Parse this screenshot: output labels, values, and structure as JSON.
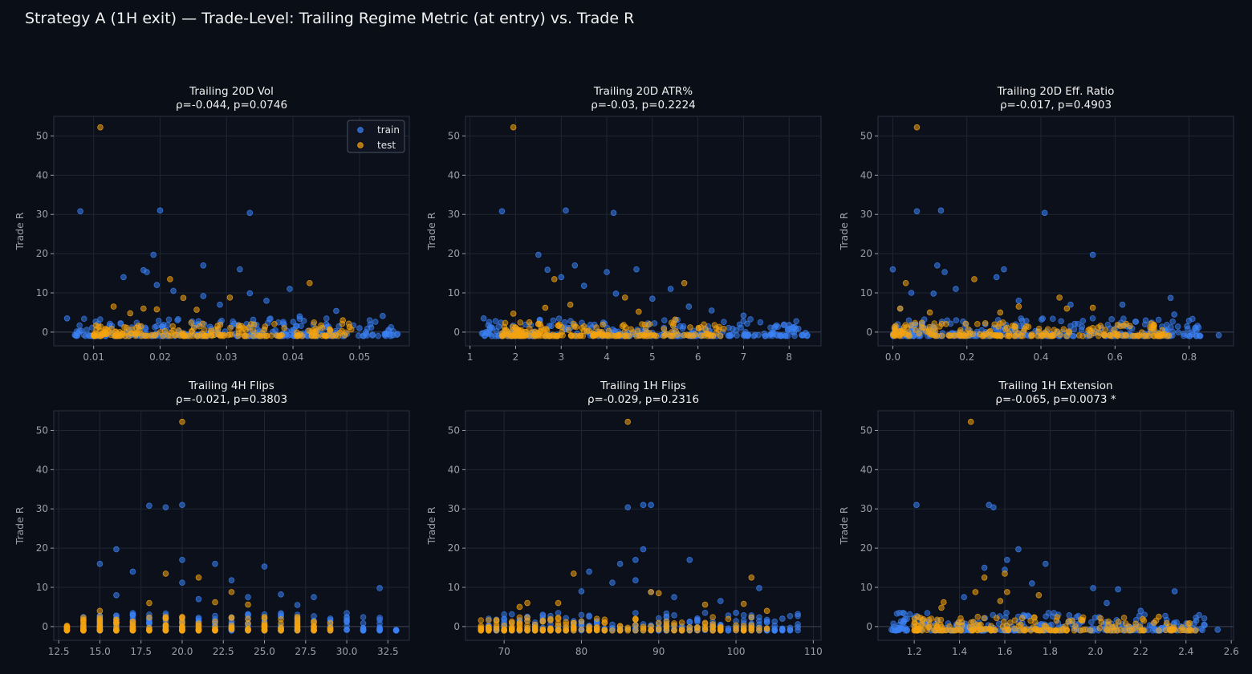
{
  "title": "Strategy A (1H exit) — Trade-Level: Trailing Regime Metric (at entry) vs. Trade R",
  "colors": {
    "background": "#0a0e17",
    "train": "#3b82f6",
    "test": "#f5a30e"
  },
  "legend": {
    "position": "top-right",
    "entries": [
      "train",
      "test"
    ]
  },
  "chart_data": [
    {
      "type": "scatter",
      "title": "Trailing 20D Vol",
      "subtitle": "ρ=-0.044, p=0.0746",
      "xlabel": "",
      "ylabel": "Trade R",
      "xlim": [
        0.004,
        0.0575
      ],
      "ylim": [
        -3.5,
        55
      ],
      "xticks": [
        0.01,
        0.02,
        0.03,
        0.04,
        0.05
      ],
      "xticklabels": [
        "0.01",
        "0.02",
        "0.03",
        "0.04",
        "0.05"
      ],
      "yticks": [
        0,
        10,
        20,
        30,
        40,
        50
      ],
      "grid": true,
      "legend": true,
      "series": [
        {
          "name": "train",
          "points": [
            [
              0.008,
              30.8
            ],
            [
              0.02,
              31.0
            ],
            [
              0.0335,
              30.4
            ],
            [
              0.019,
              19.7
            ],
            [
              0.0265,
              17.0
            ],
            [
              0.0175,
              15.8
            ],
            [
              0.018,
              15.3
            ],
            [
              0.0145,
              14.0
            ],
            [
              0.032,
              16.0
            ],
            [
              0.0195,
              12.0
            ],
            [
              0.0395,
              11.0
            ],
            [
              0.022,
              10.5
            ],
            [
              0.0335,
              9.9
            ],
            [
              0.0465,
              5.4
            ],
            [
              0.0535,
              4.1
            ],
            [
              0.006,
              3.5
            ],
            [
              0.036,
              8.0
            ],
            [
              0.0265,
              9.2
            ],
            [
              0.029,
              7.0
            ],
            [
              0.041,
              4.0
            ],
            [
              0.045,
              2.0
            ],
            [
              0.05,
              1.0
            ],
            [
              0.054,
              -0.4
            ],
            [
              0.055,
              -0.8
            ]
          ],
          "range": [
            0.007,
            0.056
          ]
        },
        {
          "name": "test",
          "points": [
            [
              0.011,
              52.2
            ],
            [
              0.0215,
              13.5
            ],
            [
              0.0425,
              12.5
            ],
            [
              0.0305,
              8.8
            ],
            [
              0.0195,
              5.8
            ],
            [
              0.0175,
              6.0
            ],
            [
              0.013,
              6.5
            ],
            [
              0.0235,
              8.7
            ],
            [
              0.0475,
              3.0
            ],
            [
              0.0485,
              1.3
            ],
            [
              0.0255,
              5.7
            ],
            [
              0.0155,
              4.8
            ]
          ],
          "range": [
            0.01,
            0.049
          ]
        }
      ]
    },
    {
      "type": "scatter",
      "title": "Trailing 20D ATR%",
      "subtitle": "ρ=-0.03, p=0.2224",
      "xlabel": "",
      "ylabel": "Trade R",
      "xlim": [
        0.9,
        8.7
      ],
      "ylim": [
        -3.5,
        55
      ],
      "xticks": [
        1,
        2,
        3,
        4,
        5,
        6,
        7,
        8
      ],
      "xticklabels": [
        "1",
        "2",
        "3",
        "4",
        "5",
        "6",
        "7",
        "8"
      ],
      "yticks": [
        0,
        10,
        20,
        30,
        40,
        50
      ],
      "grid": true,
      "legend": false,
      "series": [
        {
          "name": "train",
          "points": [
            [
              1.7,
              30.8
            ],
            [
              3.1,
              31.0
            ],
            [
              4.15,
              30.4
            ],
            [
              2.5,
              19.7
            ],
            [
              3.3,
              17.0
            ],
            [
              2.7,
              15.9
            ],
            [
              4.65,
              16.0
            ],
            [
              3.0,
              14.0
            ],
            [
              4.0,
              15.3
            ],
            [
              3.5,
              11.8
            ],
            [
              5.4,
              11.0
            ],
            [
              4.2,
              9.8
            ],
            [
              5.0,
              8.5
            ],
            [
              6.3,
              5.5
            ],
            [
              7.0,
              4.2
            ],
            [
              1.3,
              3.5
            ],
            [
              8.0,
              1.8
            ],
            [
              8.1,
              1.0
            ],
            [
              7.6,
              -0.5
            ],
            [
              8.4,
              -0.8
            ],
            [
              5.8,
              6.5
            ]
          ],
          "range": [
            1.25,
            8.4
          ]
        },
        {
          "name": "test",
          "points": [
            [
              1.95,
              52.2
            ],
            [
              2.85,
              13.5
            ],
            [
              5.7,
              12.5
            ],
            [
              4.4,
              8.8
            ],
            [
              2.65,
              6.2
            ],
            [
              3.2,
              7.0
            ],
            [
              4.7,
              5.2
            ],
            [
              5.5,
              3.2
            ],
            [
              1.95,
              4.7
            ],
            [
              2.3,
              2.5
            ]
          ],
          "range": [
            1.7,
            6.6
          ]
        }
      ]
    },
    {
      "type": "scatter",
      "title": "Trailing 20D Eff. Ratio",
      "subtitle": "ρ=-0.017, p=0.4903",
      "xlabel": "",
      "ylabel": "Trade R",
      "xlim": [
        -0.04,
        0.92
      ],
      "ylim": [
        -3.5,
        55
      ],
      "xticks": [
        0.0,
        0.2,
        0.4,
        0.6,
        0.8
      ],
      "xticklabels": [
        "0.0",
        "0.2",
        "0.4",
        "0.6",
        "0.8"
      ],
      "yticks": [
        0,
        10,
        20,
        30,
        40,
        50
      ],
      "grid": true,
      "legend": false,
      "series": [
        {
          "name": "train",
          "points": [
            [
              0.065,
              30.8
            ],
            [
              0.13,
              31.0
            ],
            [
              0.41,
              30.4
            ],
            [
              0.54,
              19.7
            ],
            [
              0.12,
              17.0
            ],
            [
              0.0,
              16.0
            ],
            [
              0.3,
              16.0
            ],
            [
              0.14,
              15.3
            ],
            [
              0.28,
              14.0
            ],
            [
              0.17,
              11.0
            ],
            [
              0.05,
              10.0
            ],
            [
              0.11,
              9.8
            ],
            [
              0.34,
              8.0
            ],
            [
              0.48,
              7.0
            ],
            [
              0.62,
              7.0
            ],
            [
              0.75,
              8.7
            ],
            [
              0.76,
              4.5
            ],
            [
              0.82,
              0.5
            ],
            [
              0.88,
              -0.8
            ],
            [
              0.02,
              6.0
            ]
          ],
          "range": [
            0.0,
            0.84
          ]
        },
        {
          "name": "test",
          "points": [
            [
              0.065,
              52.2
            ],
            [
              0.035,
              12.5
            ],
            [
              0.22,
              13.5
            ],
            [
              0.45,
              8.8
            ],
            [
              0.54,
              6.2
            ],
            [
              0.34,
              6.5
            ],
            [
              0.02,
              6.0
            ],
            [
              0.29,
              5.0
            ],
            [
              0.47,
              6.0
            ],
            [
              0.1,
              5.0
            ],
            [
              0.7,
              1.0
            ]
          ],
          "range": [
            0.0,
            0.75
          ]
        }
      ]
    },
    {
      "type": "scatter",
      "title": "Trailing 4H Flips",
      "subtitle": "ρ=-0.021, p=0.3803",
      "xlabel": "",
      "ylabel": "Trade R",
      "xlim": [
        12.2,
        33.8
      ],
      "ylim": [
        -3.5,
        55
      ],
      "xticks": [
        12.5,
        15.0,
        17.5,
        20.0,
        22.5,
        25.0,
        27.5,
        30.0,
        32.5
      ],
      "xticklabels": [
        "12.5",
        "15.0",
        "17.5",
        "20.0",
        "22.5",
        "25.0",
        "27.5",
        "30.0",
        "32.5"
      ],
      "yticks": [
        0,
        10,
        20,
        30,
        40,
        50
      ],
      "grid": true,
      "legend": false,
      "series": [
        {
          "name": "train",
          "points": [
            [
              18,
              30.8
            ],
            [
              19,
              30.4
            ],
            [
              20,
              31.0
            ],
            [
              16,
              19.7
            ],
            [
              20,
              17.0
            ],
            [
              15,
              16.0
            ],
            [
              22,
              16.0
            ],
            [
              25,
              15.3
            ],
            [
              17,
              14.0
            ],
            [
              20,
              11.2
            ],
            [
              23,
              11.8
            ],
            [
              32,
              9.8
            ],
            [
              26,
              8.2
            ],
            [
              28,
              7.5
            ],
            [
              21,
              7.0
            ],
            [
              24,
              7.5
            ],
            [
              27,
              5.5
            ],
            [
              16,
              8.0
            ]
          ],
          "range": [
            14,
            33
          ],
          "discrete": true
        },
        {
          "name": "test",
          "points": [
            [
              20,
              52.2
            ],
            [
              19,
              13.5
            ],
            [
              21,
              12.5
            ],
            [
              23,
              8.8
            ],
            [
              15,
              4.0
            ],
            [
              18,
              6.0
            ],
            [
              22,
              6.2
            ],
            [
              24,
              5.6
            ]
          ],
          "range": [
            13,
            29
          ],
          "discrete": true
        }
      ]
    },
    {
      "type": "scatter",
      "title": "Trailing 1H Flips",
      "subtitle": "ρ=-0.029, p=0.2316",
      "xlabel": "",
      "ylabel": "Trade R",
      "xlim": [
        65,
        111
      ],
      "ylim": [
        -3.5,
        55
      ],
      "xticks": [
        70,
        80,
        90,
        100,
        110
      ],
      "xticklabels": [
        "70",
        "80",
        "90",
        "100",
        "110"
      ],
      "yticks": [
        0,
        10,
        20,
        30,
        40,
        50
      ],
      "grid": true,
      "legend": false,
      "series": [
        {
          "name": "train",
          "points": [
            [
              86,
              30.4
            ],
            [
              88,
              31.0
            ],
            [
              89,
              31.0
            ],
            [
              88,
              19.7
            ],
            [
              87,
              17.0
            ],
            [
              94,
              17.0
            ],
            [
              85,
              16.0
            ],
            [
              81,
              14.0
            ],
            [
              84,
              11.2
            ],
            [
              87,
              11.8
            ],
            [
              103,
              9.8
            ],
            [
              80,
              9.0
            ],
            [
              89,
              8.8
            ],
            [
              92,
              7.5
            ],
            [
              98,
              6.5
            ],
            [
              100,
              3.5
            ],
            [
              108,
              3.2
            ],
            [
              106,
              2.0
            ]
          ],
          "range": [
            68,
            108
          ],
          "discrete": true
        },
        {
          "name": "test",
          "points": [
            [
              86,
              52.2
            ],
            [
              79,
              13.5
            ],
            [
              102,
              12.5
            ],
            [
              89,
              8.8
            ],
            [
              90,
              8.5
            ],
            [
              72,
              5.0
            ],
            [
              77,
              6.0
            ],
            [
              96,
              5.6
            ],
            [
              101,
              5.8
            ],
            [
              104,
              4.0
            ],
            [
              73,
              6.0
            ]
          ],
          "range": [
            67,
            104
          ],
          "discrete": true
        }
      ]
    },
    {
      "type": "scatter",
      "title": "Trailing 1H Extension",
      "subtitle": "ρ=-0.065, p=0.0073 *",
      "xlabel": "",
      "ylabel": "Trade R",
      "xlim": [
        1.04,
        2.61
      ],
      "ylim": [
        -3.5,
        55
      ],
      "xticks": [
        1.2,
        1.4,
        1.6,
        1.8,
        2.0,
        2.2,
        2.4,
        2.6
      ],
      "xticklabels": [
        "1.2",
        "1.4",
        "1.6",
        "1.8",
        "2.0",
        "2.2",
        "2.4",
        "2.6"
      ],
      "yticks": [
        0,
        10,
        20,
        30,
        40,
        50
      ],
      "grid": true,
      "legend": false,
      "series": [
        {
          "name": "train",
          "points": [
            [
              1.21,
              31.0
            ],
            [
              1.53,
              31.0
            ],
            [
              1.55,
              30.4
            ],
            [
              1.66,
              19.7
            ],
            [
              1.61,
              17.0
            ],
            [
              1.78,
              16.0
            ],
            [
              1.51,
              15.0
            ],
            [
              1.6,
              14.5
            ],
            [
              1.72,
              11.0
            ],
            [
              1.99,
              9.8
            ],
            [
              2.1,
              9.5
            ],
            [
              2.35,
              9.0
            ],
            [
              1.15,
              3.5
            ],
            [
              1.42,
              7.5
            ],
            [
              2.05,
              6.0
            ],
            [
              2.2,
              4.0
            ],
            [
              2.48,
              0.5
            ],
            [
              2.54,
              -0.8
            ],
            [
              1.1,
              -0.8
            ]
          ],
          "range": [
            1.1,
            2.5
          ]
        },
        {
          "name": "test",
          "points": [
            [
              1.45,
              52.2
            ],
            [
              1.6,
              13.5
            ],
            [
              1.51,
              12.5
            ],
            [
              1.61,
              8.8
            ],
            [
              1.47,
              8.8
            ],
            [
              1.75,
              8.0
            ],
            [
              1.33,
              6.2
            ],
            [
              2.28,
              2.5
            ],
            [
              1.32,
              4.8
            ],
            [
              1.58,
              6.5
            ]
          ],
          "range": [
            1.2,
            2.45
          ]
        }
      ]
    }
  ]
}
